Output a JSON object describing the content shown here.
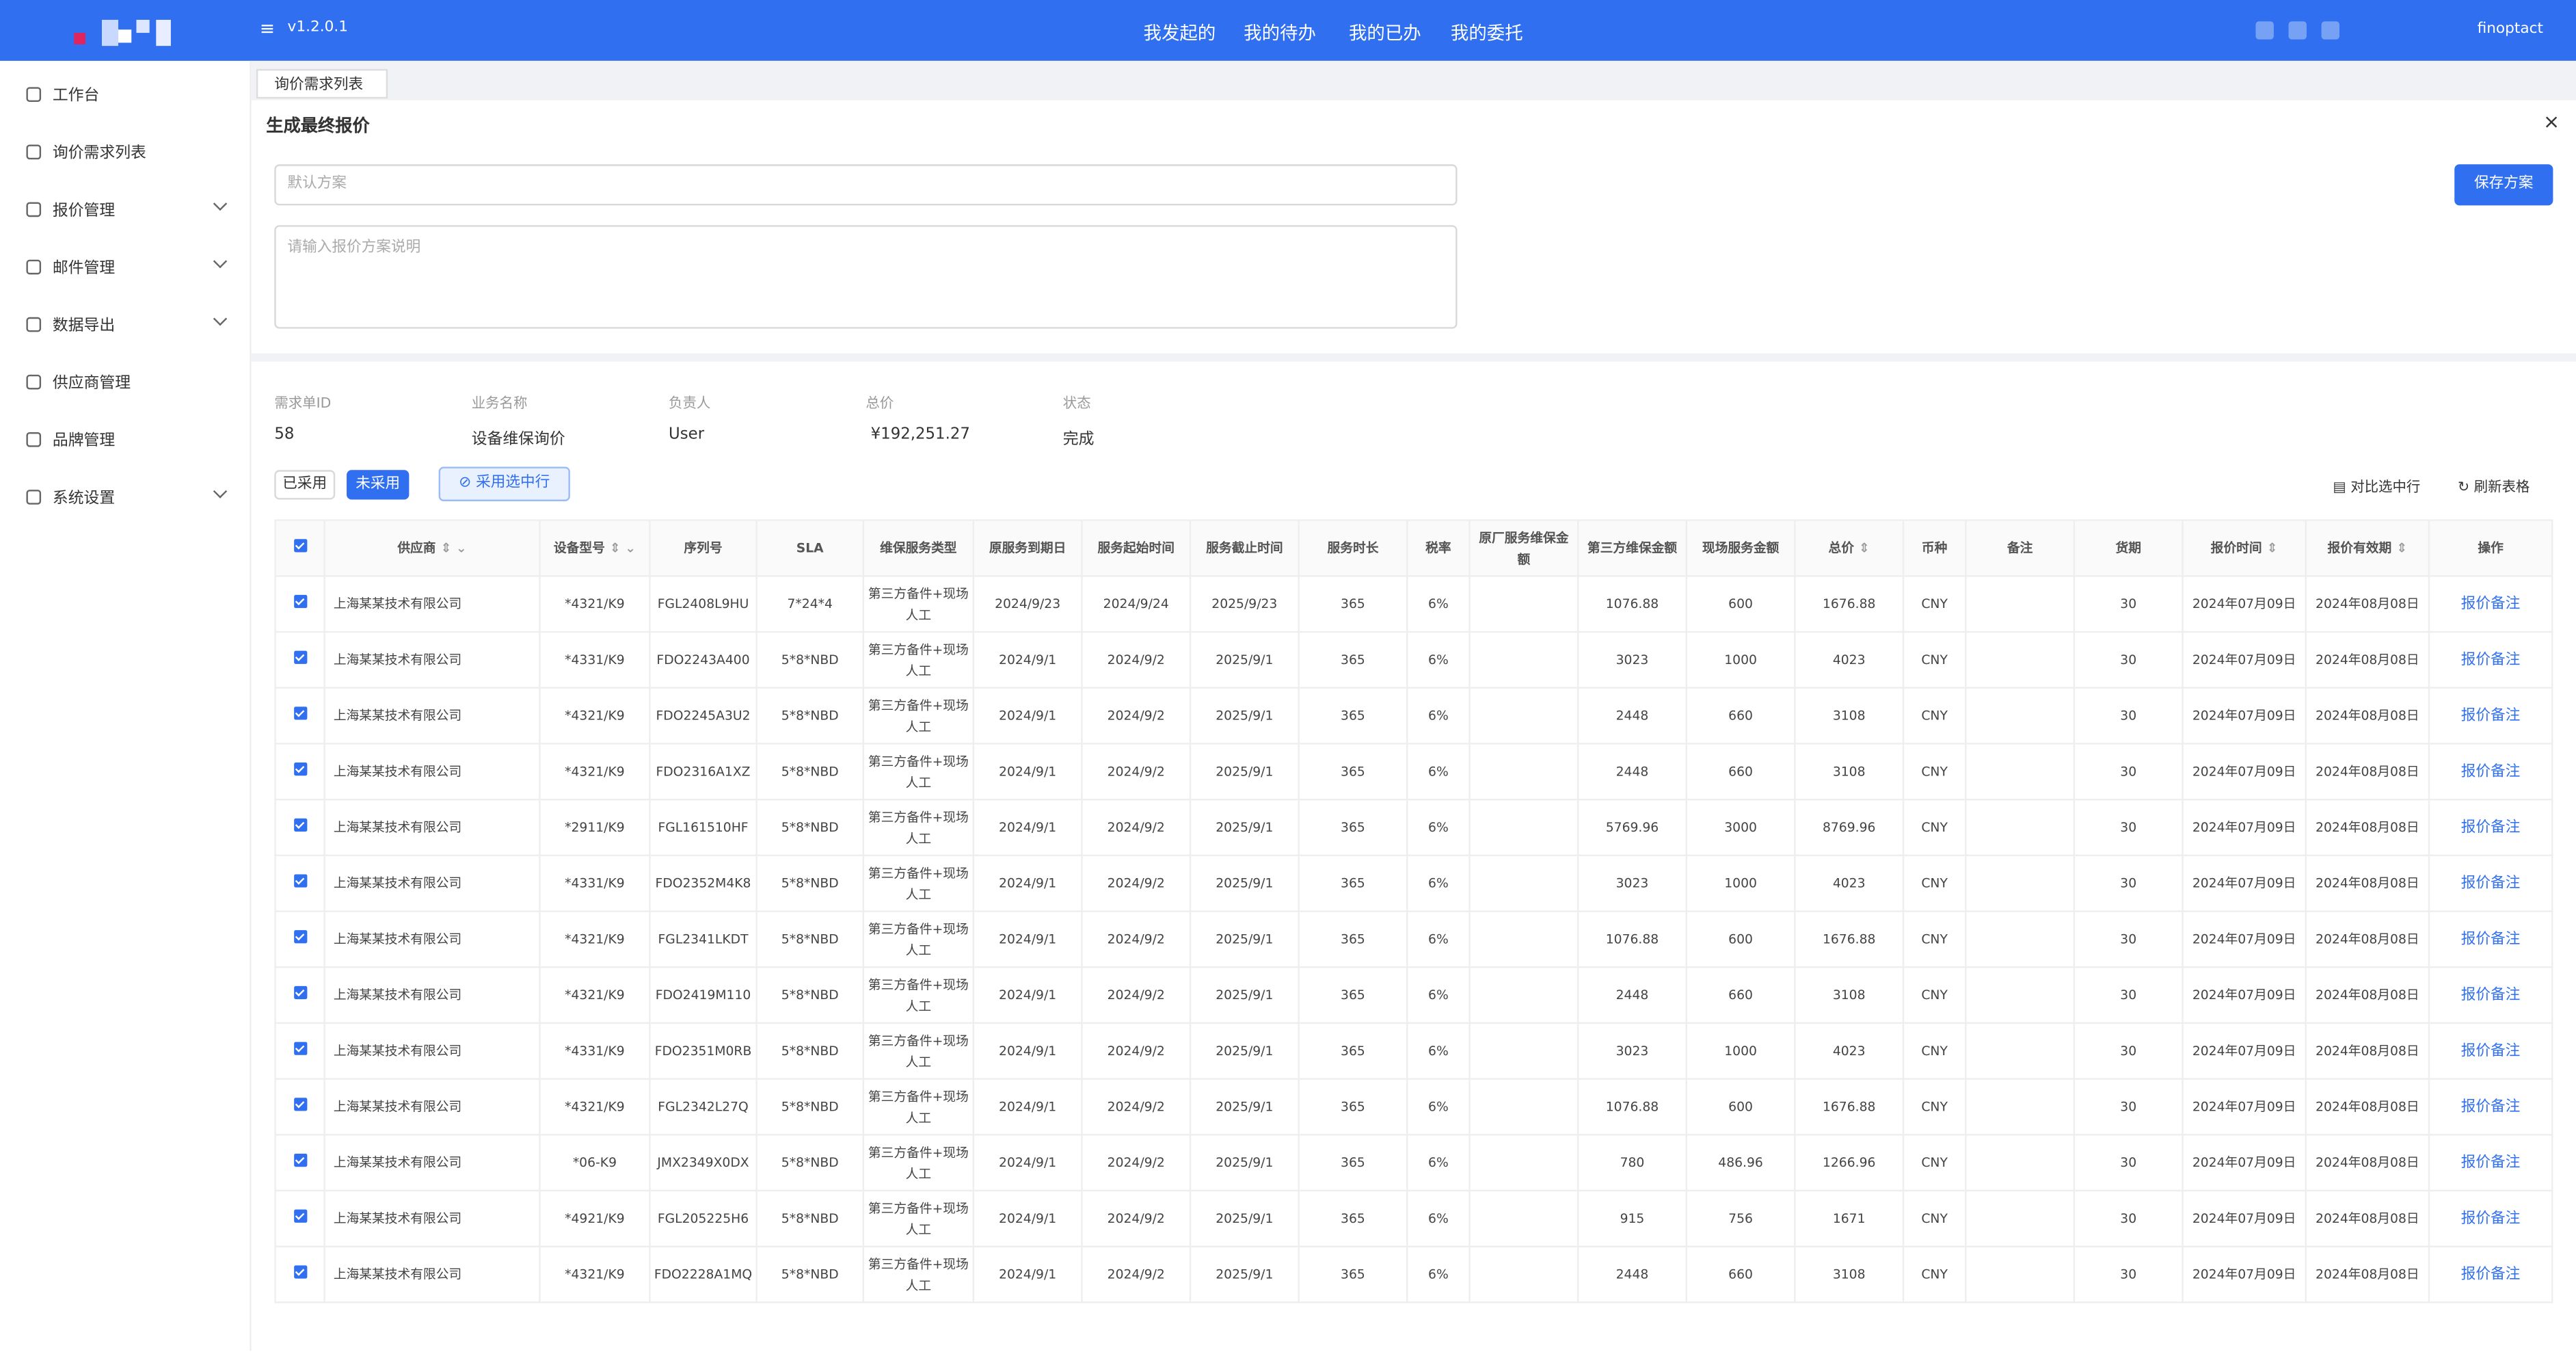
{
  "header": {
    "version": "v1.2.0.1",
    "nav": [
      "我发起的",
      "我的待办",
      "我的已办",
      "我的委托"
    ],
    "user": "finoptact"
  },
  "sidebar": [
    "工作台",
    "询价需求列表",
    "报价管理",
    "邮件管理",
    "数据导出",
    "供应商管理",
    "品牌管理",
    "系统设置"
  ],
  "tab": "询价需求列表",
  "panel": {
    "title": "生成最终报价",
    "plan_placeholder": "默认方案",
    "desc_placeholder": "请输入报价方案说明",
    "save": "保存方案"
  },
  "info": {
    "labels": [
      "需求单ID",
      "业务名称",
      "负责人",
      "总价",
      "状态"
    ],
    "values": [
      "58",
      "设备维保询价",
      "User",
      "¥192,251.27",
      "完成"
    ]
  },
  "toolbar": {
    "adopted": "已采用",
    "not_adopted": "未采用",
    "adopt_selected": "采用选中行",
    "compare": "对比选中行",
    "refresh": "刷新表格"
  },
  "table": {
    "columns": [
      "供应商",
      "设备型号",
      "序列号",
      "SLA",
      "维保服务类型",
      "原服务到期日",
      "服务起始时间",
      "服务截止时间",
      "服务时长",
      "税率",
      "原厂服务维保金额",
      "第三方维保金额",
      "现场服务金额",
      "总价",
      "币种",
      "备注",
      "货期",
      "报价时间",
      "报价有效期",
      "操作"
    ],
    "rows": [
      [
        "上海某某技术有限公司",
        "*4321/K9",
        "FGL2408L9HU",
        "7*24*4",
        "第三方备件+现场人工",
        "2024/9/23",
        "2024/9/24",
        "2025/9/23",
        "365",
        "6%",
        null,
        "1076.88",
        "600",
        "1676.88",
        "CNY",
        null,
        "30",
        "2024年07月09日",
        "2024年08月08日",
        "报价备注"
      ],
      [
        "上海某某技术有限公司",
        "*4331/K9",
        "FDO2243A400",
        "5*8*NBD",
        "第三方备件+现场人工",
        "2024/9/1",
        "2024/9/2",
        "2025/9/1",
        "365",
        "6%",
        null,
        "3023",
        "1000",
        "4023",
        "CNY",
        null,
        "30",
        "2024年07月09日",
        "2024年08月08日",
        "报价备注"
      ],
      [
        "上海某某技术有限公司",
        "*4321/K9",
        "FDO2245A3U2",
        "5*8*NBD",
        "第三方备件+现场人工",
        "2024/9/1",
        "2024/9/2",
        "2025/9/1",
        "365",
        "6%",
        null,
        "2448",
        "660",
        "3108",
        "CNY",
        null,
        "30",
        "2024年07月09日",
        "2024年08月08日",
        "报价备注"
      ],
      [
        "上海某某技术有限公司",
        "*4321/K9",
        "FDO2316A1XZ",
        "5*8*NBD",
        "第三方备件+现场人工",
        "2024/9/1",
        "2024/9/2",
        "2025/9/1",
        "365",
        "6%",
        null,
        "2448",
        "660",
        "3108",
        "CNY",
        null,
        "30",
        "2024年07月09日",
        "2024年08月08日",
        "报价备注"
      ],
      [
        "上海某某技术有限公司",
        "*2911/K9",
        "FGL161510HF",
        "5*8*NBD",
        "第三方备件+现场人工",
        "2024/9/1",
        "2024/9/2",
        "2025/9/1",
        "365",
        "6%",
        null,
        "5769.96",
        "3000",
        "8769.96",
        "CNY",
        null,
        "30",
        "2024年07月09日",
        "2024年08月08日",
        "报价备注"
      ],
      [
        "上海某某技术有限公司",
        "*4331/K9",
        "FDO2352M4K8",
        "5*8*NBD",
        "第三方备件+现场人工",
        "2024/9/1",
        "2024/9/2",
        "2025/9/1",
        "365",
        "6%",
        null,
        "3023",
        "1000",
        "4023",
        "CNY",
        null,
        "30",
        "2024年07月09日",
        "2024年08月08日",
        "报价备注"
      ],
      [
        "上海某某技术有限公司",
        "*4321/K9",
        "FGL2341LKDT",
        "5*8*NBD",
        "第三方备件+现场人工",
        "2024/9/1",
        "2024/9/2",
        "2025/9/1",
        "365",
        "6%",
        null,
        "1076.88",
        "600",
        "1676.88",
        "CNY",
        null,
        "30",
        "2024年07月09日",
        "2024年08月08日",
        "报价备注"
      ],
      [
        "上海某某技术有限公司",
        "*4321/K9",
        "FDO2419M110",
        "5*8*NBD",
        "第三方备件+现场人工",
        "2024/9/1",
        "2024/9/2",
        "2025/9/1",
        "365",
        "6%",
        null,
        "2448",
        "660",
        "3108",
        "CNY",
        null,
        "30",
        "2024年07月09日",
        "2024年08月08日",
        "报价备注"
      ],
      [
        "上海某某技术有限公司",
        "*4331/K9",
        "FDO2351M0RB",
        "5*8*NBD",
        "第三方备件+现场人工",
        "2024/9/1",
        "2024/9/2",
        "2025/9/1",
        "365",
        "6%",
        null,
        "3023",
        "1000",
        "4023",
        "CNY",
        null,
        "30",
        "2024年07月09日",
        "2024年08月08日",
        "报价备注"
      ],
      [
        "上海某某技术有限公司",
        "*4321/K9",
        "FGL2342L27Q",
        "5*8*NBD",
        "第三方备件+现场人工",
        "2024/9/1",
        "2024/9/2",
        "2025/9/1",
        "365",
        "6%",
        null,
        "1076.88",
        "600",
        "1676.88",
        "CNY",
        null,
        "30",
        "2024年07月09日",
        "2024年08月08日",
        "报价备注"
      ],
      [
        "上海某某技术有限公司",
        "*06-K9",
        "JMX2349X0DX",
        "5*8*NBD",
        "第三方备件+现场人工",
        "2024/9/1",
        "2024/9/2",
        "2025/9/1",
        "365",
        "6%",
        null,
        "780",
        "486.96",
        "1266.96",
        "CNY",
        null,
        "30",
        "2024年07月09日",
        "2024年08月08日",
        "报价备注"
      ],
      [
        "上海某某技术有限公司",
        "*4921/K9",
        "FGL205225H6",
        "5*8*NBD",
        "第三方备件+现场人工",
        "2024/9/1",
        "2024/9/2",
        "2025/9/1",
        "365",
        "6%",
        null,
        "915",
        "756",
        "1671",
        "CNY",
        null,
        "30",
        "2024年07月09日",
        "2024年08月08日",
        "报价备注"
      ],
      [
        "上海某某技术有限公司",
        "*4321/K9",
        "FDO2228A1MQ",
        "5*8*NBD",
        "第三方备件+现场人工",
        "2024/9/1",
        "2024/9/2",
        "2025/9/1",
        "365",
        "6%",
        null,
        "2448",
        "660",
        "3108",
        "CNY",
        null,
        "30",
        "2024年07月09日",
        "2024年08月08日",
        "报价备注"
      ]
    ]
  }
}
